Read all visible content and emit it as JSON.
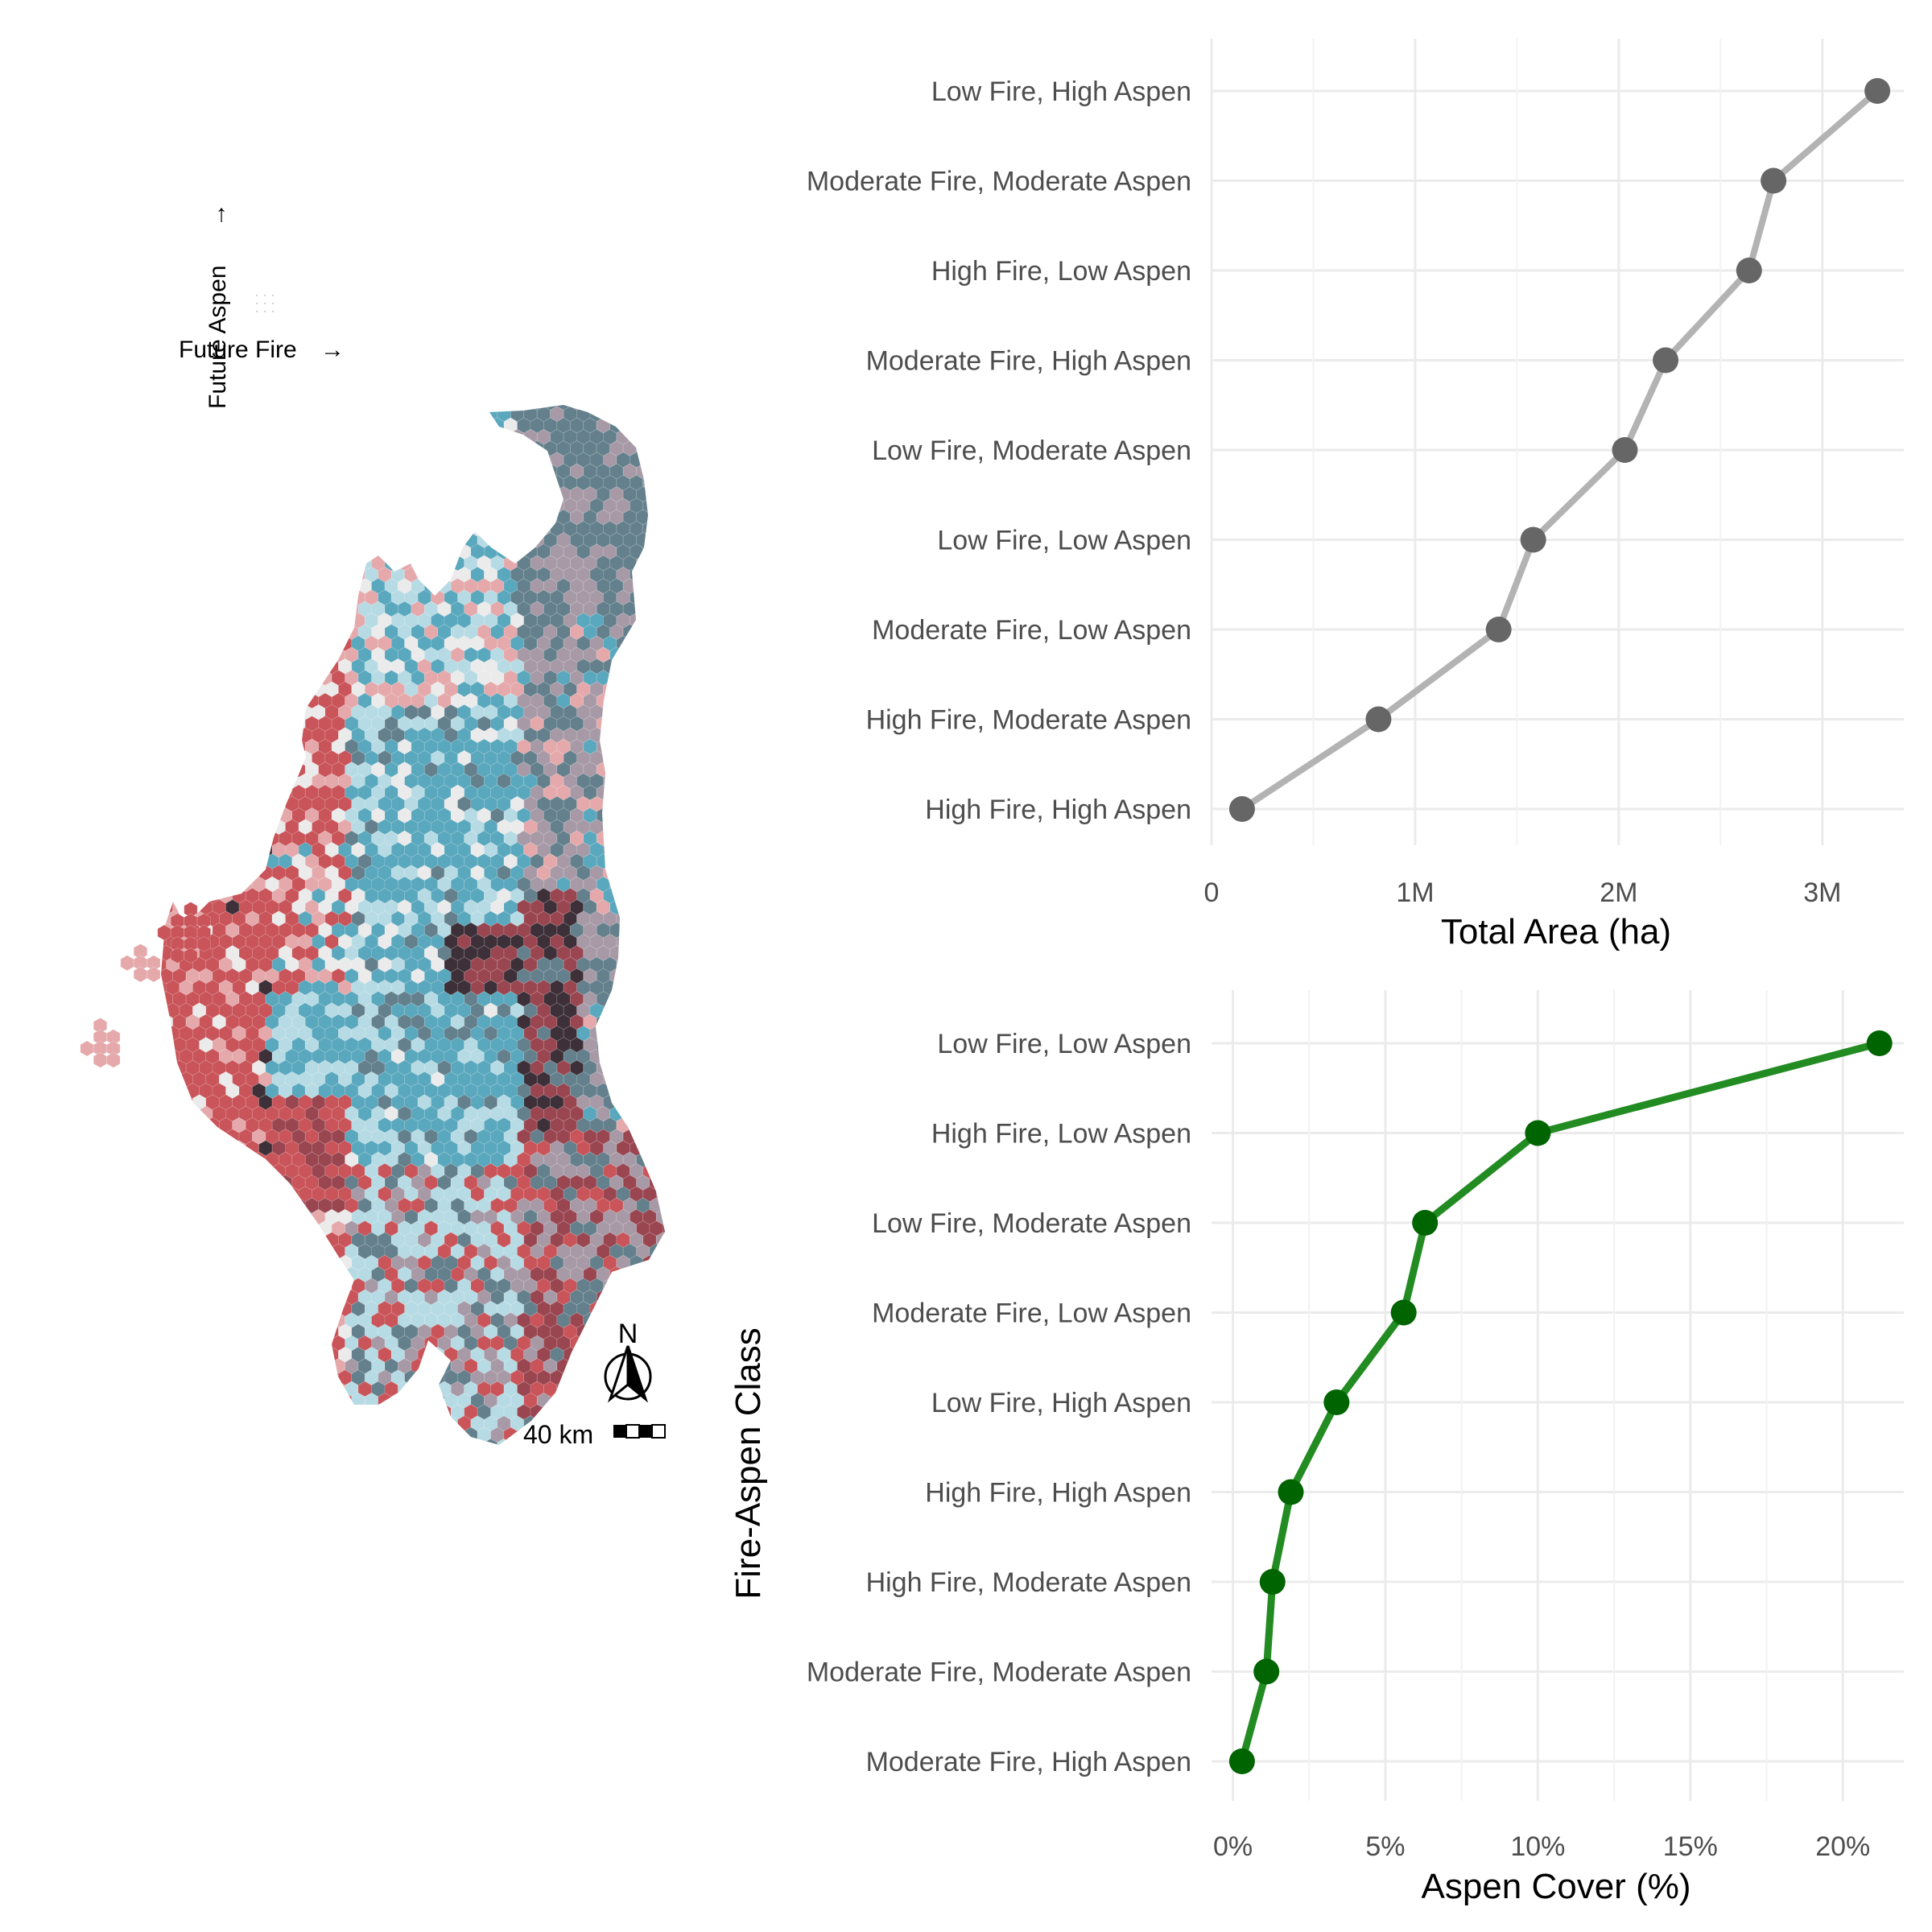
{
  "map": {
    "legend": {
      "x_label": "Future Fire",
      "y_label": "Future Aspen",
      "arrow": "→"
    },
    "north_label": "N",
    "scale_label": "40 km",
    "palette": [
      "#c95459",
      "#e5a9ab",
      "#ebebeb",
      "#b7dbe4",
      "#5aa8be",
      "#63808c",
      "#a79aa6",
      "#9a4651",
      "#3d3038"
    ]
  },
  "y_axis_title": "Fire-Aspen Class",
  "chart_data": [
    {
      "type": "line",
      "xlabel": "Total Area (ha)",
      "xlim": [
        0,
        3400000
      ],
      "x_ticks": [
        0,
        1000000,
        2000000,
        3000000
      ],
      "x_tick_labels": [
        "0",
        "1M",
        "2M",
        "3M"
      ],
      "categories": [
        "Low Fire, High Aspen",
        "Moderate Fire, Moderate Aspen",
        "High Fire, Low Aspen",
        "Moderate Fire, High Aspen",
        "Low Fire, Moderate Aspen",
        "Low Fire, Low Aspen",
        "Moderate Fire, Low Aspen",
        "High Fire, Moderate Aspen",
        "High Fire, High Aspen"
      ],
      "values": [
        3270000,
        2760000,
        2640000,
        2230000,
        2030000,
        1580000,
        1410000,
        820000,
        150000
      ],
      "grid": true,
      "line_color": "#b3b3b3",
      "point_color": "#666666"
    },
    {
      "type": "line",
      "xlabel": "Aspen Cover (%)",
      "xlim": [
        -0.7,
        22.0
      ],
      "x_ticks": [
        0,
        5,
        10,
        15,
        20
      ],
      "x_tick_labels": [
        "0%",
        "5%",
        "10%",
        "15%",
        "20%"
      ],
      "categories": [
        "Low Fire, Low Aspen",
        "High Fire, Low Aspen",
        "Low Fire, Moderate Aspen",
        "Moderate Fire, Low Aspen",
        "Low Fire, High Aspen",
        "High Fire, High Aspen",
        "High Fire, Moderate Aspen",
        "Moderate Fire, Moderate Aspen",
        "Moderate Fire, High Aspen"
      ],
      "values": [
        21.2,
        10.0,
        6.3,
        5.6,
        3.4,
        1.9,
        1.3,
        1.1,
        0.3
      ],
      "grid": true,
      "line_color": "#228b22",
      "point_color": "#006400"
    }
  ]
}
